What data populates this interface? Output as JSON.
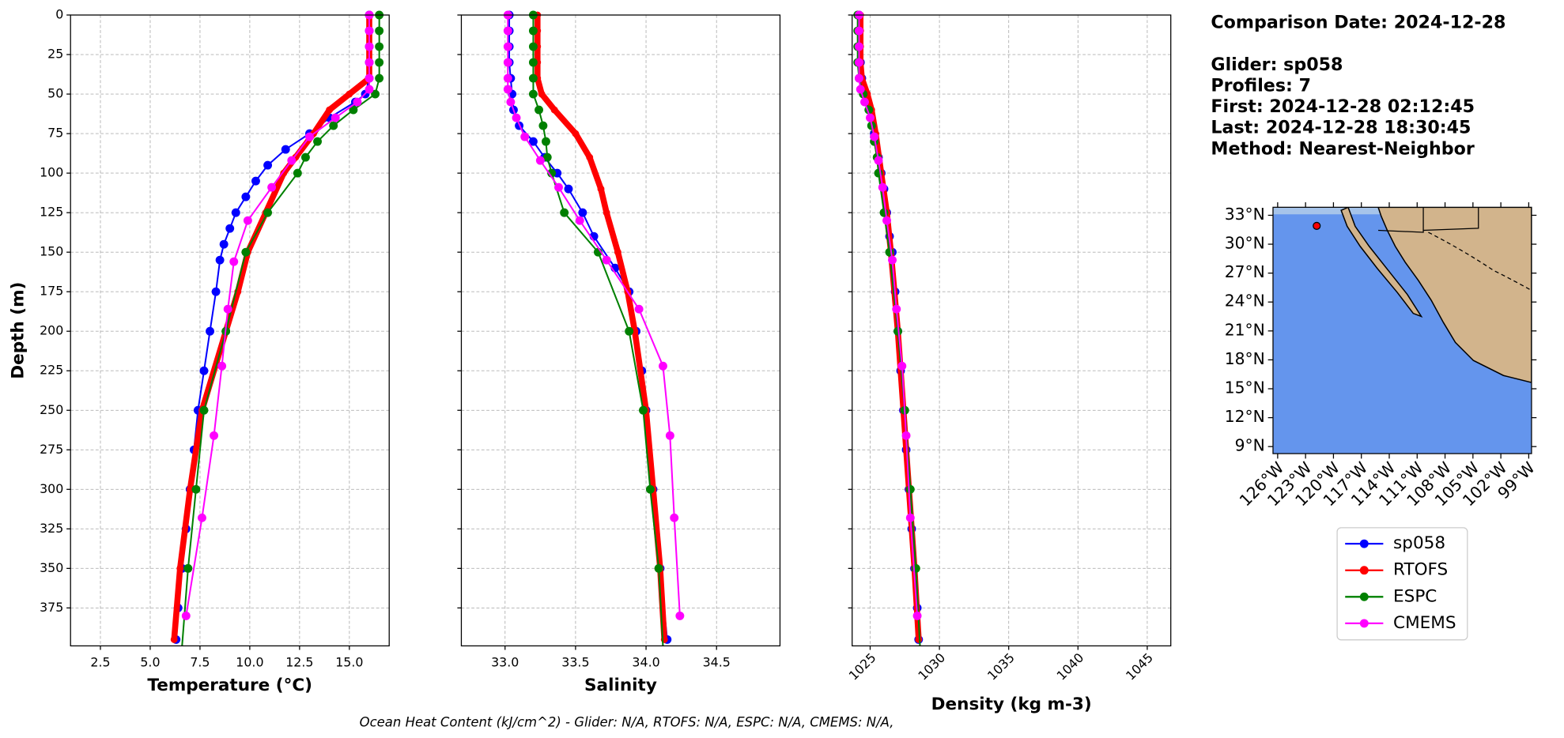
{
  "chart_data": [
    {
      "type": "line",
      "xlabel": "Temperature (°C)",
      "ylabel": "Depth (m)",
      "xlim": [
        1.0,
        17.0
      ],
      "ylim": [
        399,
        0
      ],
      "xticks": [
        2.5,
        {
          "value": 5,
          "label": "5.0"
        },
        7.5,
        {
          "value": 10,
          "label": "10.0"
        },
        12.5,
        {
          "value": 15,
          "label": "15.0"
        }
      ],
      "yticks": [
        0,
        25,
        50,
        75,
        100,
        125,
        150,
        175,
        200,
        225,
        250,
        275,
        300,
        325,
        350,
        375
      ],
      "grid": true,
      "series": [
        {
          "name": "sp058",
          "color": "#0000ff",
          "depth": [
            0,
            10,
            20,
            30,
            40,
            50,
            55,
            65,
            75,
            85,
            95,
            105,
            115,
            125,
            135,
            145,
            155,
            175,
            200,
            225,
            250,
            275,
            300,
            325,
            350,
            375,
            395
          ],
          "values": [
            16.0,
            16.0,
            16.0,
            16.0,
            16.0,
            15.8,
            15.3,
            14.0,
            13.0,
            11.8,
            10.9,
            10.3,
            9.8,
            9.3,
            9.0,
            8.7,
            8.5,
            8.3,
            8.0,
            7.7,
            7.4,
            7.2,
            7.0,
            6.8,
            6.6,
            6.4,
            6.3
          ]
        },
        {
          "name": "RTOFS",
          "color": "#ff0000",
          "depth": [
            0,
            10,
            20,
            30,
            40,
            50,
            60,
            75,
            90,
            100,
            125,
            150,
            175,
            200,
            250,
            300,
            350,
            395
          ],
          "values": [
            16.0,
            16.0,
            16.0,
            16.0,
            16.0,
            15.0,
            14.0,
            13.2,
            12.3,
            11.7,
            10.8,
            9.9,
            9.4,
            8.8,
            7.6,
            7.0,
            6.5,
            6.2
          ]
        },
        {
          "name": "ESPC",
          "color": "#008000",
          "depth": [
            0,
            10,
            20,
            30,
            40,
            50,
            60,
            70,
            80,
            90,
            100,
            125,
            150,
            200,
            250,
            300,
            350,
            400
          ],
          "values": [
            16.5,
            16.5,
            16.5,
            16.5,
            16.5,
            16.3,
            15.2,
            14.2,
            13.4,
            12.8,
            12.4,
            10.9,
            9.8,
            8.8,
            7.7,
            7.3,
            6.9,
            6.6
          ]
        },
        {
          "name": "CMEMS",
          "color": "#ff00ff",
          "depth": [
            0,
            10,
            20,
            30,
            40,
            47,
            55,
            65,
            77,
            92,
            109,
            130,
            156,
            186,
            222,
            266,
            318,
            380
          ],
          "values": [
            16.0,
            16.0,
            16.0,
            16.0,
            16.0,
            16.0,
            15.4,
            14.3,
            13.0,
            12.1,
            11.1,
            9.9,
            9.2,
            8.9,
            8.6,
            8.2,
            7.6,
            6.8
          ]
        }
      ]
    },
    {
      "type": "line",
      "xlabel": "Salinity",
      "sharey": true,
      "xlim": [
        32.69,
        34.95
      ],
      "ylim": [
        399,
        0
      ],
      "xticks": [
        {
          "value": 33,
          "label": "33.0"
        },
        33.5,
        {
          "value": 34,
          "label": "34.0"
        },
        34.5
      ],
      "grid": true,
      "series": [
        {
          "name": "sp058",
          "color": "#0000ff",
          "depth": [
            0,
            10,
            20,
            30,
            40,
            50,
            60,
            70,
            80,
            90,
            100,
            110,
            125,
            140,
            160,
            175,
            200,
            225,
            250,
            300,
            350,
            395
          ],
          "values": [
            33.03,
            33.03,
            33.03,
            33.03,
            33.04,
            33.05,
            33.06,
            33.1,
            33.2,
            33.28,
            33.37,
            33.45,
            33.55,
            33.63,
            33.78,
            33.88,
            33.93,
            33.97,
            34.0,
            34.05,
            34.1,
            34.15
          ]
        },
        {
          "name": "RTOFS",
          "color": "#ff0000",
          "depth": [
            0,
            10,
            20,
            30,
            40,
            50,
            60,
            75,
            90,
            110,
            125,
            150,
            175,
            200,
            250,
            300,
            350,
            395
          ],
          "values": [
            33.23,
            33.23,
            33.23,
            33.23,
            33.23,
            33.26,
            33.35,
            33.5,
            33.6,
            33.68,
            33.72,
            33.8,
            33.87,
            33.92,
            34.0,
            34.05,
            34.1,
            34.13
          ]
        },
        {
          "name": "ESPC",
          "color": "#008000",
          "depth": [
            0,
            10,
            20,
            30,
            40,
            50,
            60,
            70,
            80,
            90,
            100,
            125,
            150,
            200,
            250,
            300,
            350,
            400
          ],
          "values": [
            33.2,
            33.2,
            33.2,
            33.2,
            33.2,
            33.2,
            33.24,
            33.27,
            33.29,
            33.3,
            33.33,
            33.42,
            33.66,
            33.88,
            33.98,
            34.03,
            34.09,
            34.12
          ]
        },
        {
          "name": "CMEMS",
          "color": "#ff00ff",
          "depth": [
            0,
            10,
            20,
            30,
            40,
            47,
            55,
            65,
            77,
            92,
            109,
            130,
            155,
            186,
            222,
            266,
            318,
            380
          ],
          "values": [
            33.02,
            33.02,
            33.02,
            33.02,
            33.02,
            33.02,
            33.04,
            33.08,
            33.14,
            33.25,
            33.38,
            33.53,
            33.72,
            33.95,
            34.12,
            34.17,
            34.2,
            34.24
          ]
        }
      ]
    },
    {
      "type": "line",
      "xlabel": "Density (kg m-3)",
      "sharey": true,
      "xtick_rotation": 45,
      "xlim": [
        1023.7,
        1046.7
      ],
      "ylim": [
        399,
        0
      ],
      "xticks": [
        1025,
        1030,
        1035,
        1040,
        1045
      ],
      "grid": true,
      "series": [
        {
          "name": "sp058",
          "color": "#0000ff",
          "depth": [
            0,
            10,
            20,
            30,
            40,
            50,
            60,
            75,
            90,
            100,
            110,
            125,
            140,
            150,
            175,
            200,
            225,
            250,
            275,
            300,
            325,
            350,
            375,
            395
          ],
          "values": [
            1024.2,
            1024.2,
            1024.2,
            1024.3,
            1024.4,
            1024.7,
            1025.0,
            1025.3,
            1025.6,
            1025.8,
            1026.0,
            1026.2,
            1026.4,
            1026.6,
            1026.8,
            1027.0,
            1027.2,
            1027.4,
            1027.6,
            1027.8,
            1028.0,
            1028.2,
            1028.4,
            1028.5
          ]
        },
        {
          "name": "RTOFS",
          "color": "#ff0000",
          "depth": [
            0,
            10,
            20,
            30,
            40,
            50,
            60,
            75,
            100,
            125,
            150,
            200,
            250,
            300,
            350,
            395
          ],
          "values": [
            1024.3,
            1024.3,
            1024.3,
            1024.3,
            1024.4,
            1024.8,
            1025.1,
            1025.4,
            1025.8,
            1026.2,
            1026.5,
            1027.0,
            1027.4,
            1027.8,
            1028.2,
            1028.5
          ]
        },
        {
          "name": "ESPC",
          "color": "#008000",
          "depth": [
            0,
            10,
            20,
            30,
            40,
            50,
            60,
            70,
            80,
            90,
            100,
            125,
            150,
            200,
            250,
            300,
            350,
            400
          ],
          "values": [
            1024.1,
            1024.1,
            1024.1,
            1024.1,
            1024.2,
            1024.5,
            1024.9,
            1025.1,
            1025.3,
            1025.5,
            1025.6,
            1026.0,
            1026.4,
            1027.0,
            1027.5,
            1027.9,
            1028.3,
            1028.6
          ]
        },
        {
          "name": "CMEMS",
          "color": "#ff00ff",
          "depth": [
            0,
            10,
            20,
            30,
            40,
            47,
            55,
            65,
            77,
            92,
            109,
            130,
            155,
            186,
            222,
            266,
            318,
            380
          ],
          "values": [
            1024.2,
            1024.2,
            1024.2,
            1024.2,
            1024.2,
            1024.3,
            1024.6,
            1025.0,
            1025.3,
            1025.6,
            1025.9,
            1026.2,
            1026.6,
            1026.9,
            1027.3,
            1027.6,
            1027.9,
            1028.4
          ]
        }
      ]
    }
  ],
  "info": [
    "Comparison Date: 2024-12-28",
    "Glider: sp058",
    "Profiles: 7",
    "First: 2024-12-28 02:12:45",
    "Last: 2024-12-28 18:30:45",
    "Method: Nearest-Neighbor"
  ],
  "map": {
    "lonlim": [
      -126.5,
      -98.7
    ],
    "latlim": [
      8.27,
      33.83
    ],
    "lat_ticks": [
      {
        "value": 33,
        "label": "33°N"
      },
      {
        "value": 30,
        "label": "30°N"
      },
      {
        "value": 27,
        "label": "27°N"
      },
      {
        "value": 24,
        "label": "24°N"
      },
      {
        "value": 21,
        "label": "21°N"
      },
      {
        "value": 18,
        "label": "18°N"
      },
      {
        "value": 15,
        "label": "15°N"
      },
      {
        "value": 12,
        "label": "12°N"
      },
      {
        "value": 9,
        "label": "9°N"
      }
    ],
    "lon_ticks": [
      {
        "value": -126,
        "label": "126°W"
      },
      {
        "value": -123,
        "label": "123°W"
      },
      {
        "value": -120,
        "label": "120°W"
      },
      {
        "value": -117,
        "label": "117°W"
      },
      {
        "value": -114,
        "label": "114°W"
      },
      {
        "value": -111,
        "label": "111°W"
      },
      {
        "value": -108,
        "label": "108°W"
      },
      {
        "value": -105,
        "label": "105°W"
      },
      {
        "value": -102,
        "label": "102°W"
      },
      {
        "value": -99,
        "label": "99°W"
      }
    ],
    "glider": {
      "lon": -121.8,
      "lat": 31.9
    }
  },
  "footer": "Ocean Heat Content (kJ/cm^2) - Glider: N/A,  RTOFS: N/A,  ESPC: N/A,  CMEMS: N/A,"
}
